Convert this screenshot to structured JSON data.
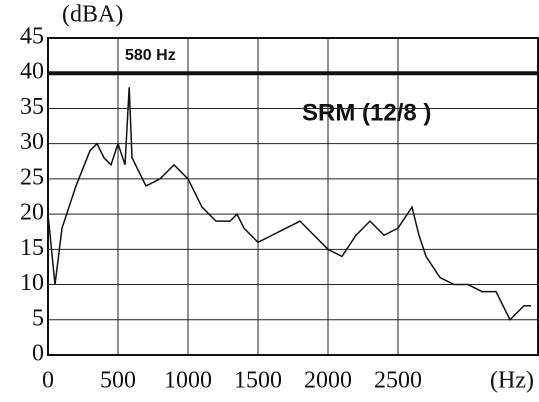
{
  "chart_data": {
    "type": "line",
    "y_label": "(dBA)",
    "x_label": "(Hz)",
    "annotations": [
      "580 Hz",
      "SRM (12/8 )"
    ],
    "hline": 40,
    "x": [
      0,
      50,
      100,
      150,
      200,
      300,
      350,
      400,
      450,
      500,
      550,
      580,
      600,
      650,
      700,
      800,
      900,
      1000,
      1100,
      1200,
      1300,
      1350,
      1400,
      1500,
      1600,
      1700,
      1800,
      1900,
      2000,
      2100,
      2200,
      2300,
      2400,
      2500,
      2600,
      2650,
      2700,
      2800,
      2900,
      3000,
      3100,
      3200,
      3250,
      3300,
      3350,
      3400,
      3450
    ],
    "series": [
      {
        "color": "#111111",
        "values": [
          20,
          10,
          18,
          21,
          24,
          29,
          30,
          28,
          27,
          30,
          27,
          38,
          28,
          26,
          24,
          25,
          27,
          25,
          21,
          19,
          19,
          20,
          18,
          16,
          17,
          18,
          19,
          17,
          15,
          14,
          17,
          19,
          17,
          18,
          21,
          17,
          14,
          11,
          10,
          10,
          9,
          9,
          7,
          5,
          6,
          7,
          7
        ]
      }
    ],
    "xlim": [
      0,
      3500
    ],
    "xticks": [
      0,
      500,
      1000,
      1500,
      2000,
      2500
    ],
    "ylim": [
      0,
      45
    ],
    "yticks": [
      0,
      5,
      10,
      15,
      20,
      25,
      30,
      35,
      40,
      45
    ],
    "grid": true
  }
}
